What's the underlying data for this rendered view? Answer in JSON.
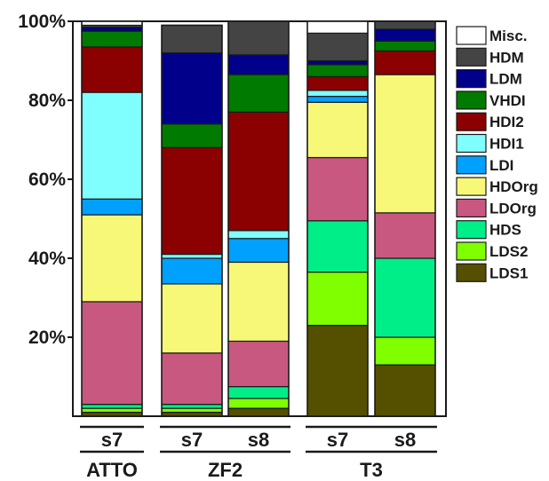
{
  "chart_data": {
    "type": "bar",
    "stacked": true,
    "orientation": "vertical",
    "title": "",
    "xlabel": "",
    "ylabel": "",
    "ylim": [
      0,
      100
    ],
    "yticks": [
      "20%",
      "40%",
      "60%",
      "80%",
      "100%"
    ],
    "ytick_values": [
      20,
      40,
      60,
      80,
      100
    ],
    "bars": [
      {
        "label": "s7",
        "group": "ATTO"
      },
      {
        "label": "s7",
        "group": "ZF2"
      },
      {
        "label": "s8",
        "group": "ZF2"
      },
      {
        "label": "s7",
        "group": "T3"
      },
      {
        "label": "s8",
        "group": "T3"
      }
    ],
    "groups": [
      "ATTO",
      "ZF2",
      "T3"
    ],
    "legend_position": "right",
    "series": [
      {
        "name": "LDS1",
        "color": "#554f00",
        "values": [
          1.0,
          1.0,
          2.0,
          23.0,
          13.0
        ]
      },
      {
        "name": "LDS2",
        "color": "#7fff00",
        "values": [
          1.0,
          1.0,
          2.5,
          13.5,
          7.0
        ]
      },
      {
        "name": "HDS",
        "color": "#00ee88",
        "values": [
          1.0,
          1.0,
          3.0,
          13.0,
          20.0
        ]
      },
      {
        "name": "LDOrg",
        "color": "#c8587f",
        "values": [
          26.0,
          13.0,
          11.5,
          16.0,
          11.5
        ]
      },
      {
        "name": "HDOrg",
        "color": "#f8f878",
        "values": [
          22.0,
          17.5,
          20.0,
          14.0,
          35.0
        ]
      },
      {
        "name": "LDI",
        "color": "#00a0ff",
        "values": [
          4.0,
          6.5,
          6.0,
          1.5,
          0.0
        ]
      },
      {
        "name": "HDI1",
        "color": "#80ffff",
        "values": [
          27.0,
          1.0,
          2.0,
          1.5,
          0.0
        ]
      },
      {
        "name": "HDI2",
        "color": "#8b0000",
        "values": [
          11.5,
          27.0,
          30.0,
          3.5,
          6.0
        ]
      },
      {
        "name": "VHDI",
        "color": "#007a00",
        "values": [
          4.0,
          6.0,
          9.5,
          3.0,
          2.5
        ]
      },
      {
        "name": "LDM",
        "color": "#00008b",
        "values": [
          1.0,
          18.0,
          5.0,
          1.0,
          3.0
        ]
      },
      {
        "name": "HDM",
        "color": "#444444",
        "values": [
          0.5,
          7.0,
          8.5,
          7.0,
          2.0
        ]
      },
      {
        "name": "Misc.",
        "color": "#ffffff",
        "values": [
          1.0,
          0.0,
          0.0,
          3.0,
          0.0
        ]
      }
    ]
  }
}
